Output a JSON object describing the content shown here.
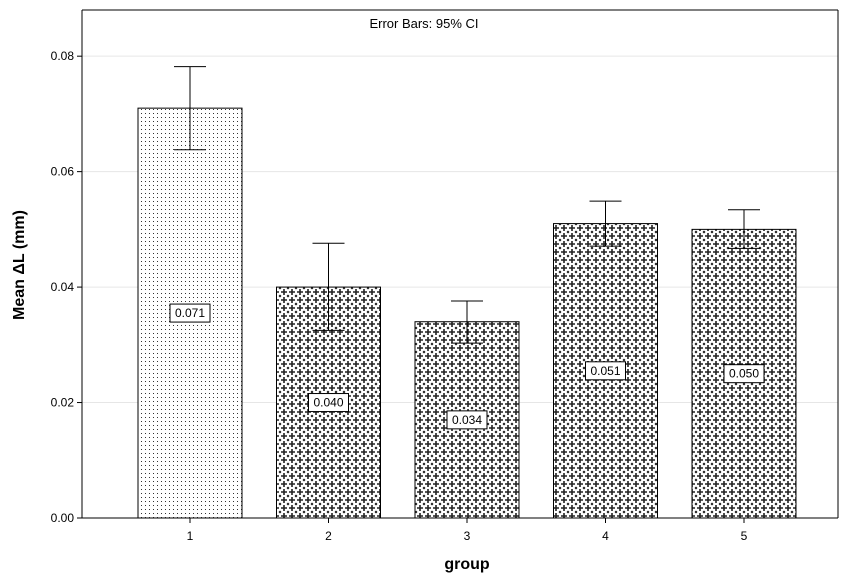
{
  "chart_data": {
    "type": "bar",
    "annotation": "Error Bars: 95% CI",
    "xlabel": "group",
    "ylabel": "Mean ΔL (mm)",
    "categories": [
      "1",
      "2",
      "3",
      "4",
      "5"
    ],
    "values": [
      0.071,
      0.04,
      0.034,
      0.051,
      0.05
    ],
    "value_labels": [
      "0.071",
      "0.040",
      "0.034",
      "0.051",
      "0.050"
    ],
    "ci_low": [
      0.0638,
      0.0325,
      0.0303,
      0.0471,
      0.0467
    ],
    "ci_high": [
      0.0782,
      0.0476,
      0.0376,
      0.0549,
      0.0534
    ],
    "patterns": [
      "dots",
      "crosses",
      "crosses",
      "crosses",
      "crosses"
    ],
    "ylim": [
      0,
      0.088
    ],
    "yticks": [
      0.0,
      0.02,
      0.04,
      0.06,
      0.08
    ],
    "ytick_labels": [
      "0.00",
      "0.02",
      "0.04",
      "0.06",
      "0.08"
    ],
    "grid": "horizontal",
    "colors": {
      "bar_fill": "#ffffff",
      "bar_stroke": "#000000",
      "grid": "#e6e6e6",
      "axis": "#000000"
    }
  }
}
